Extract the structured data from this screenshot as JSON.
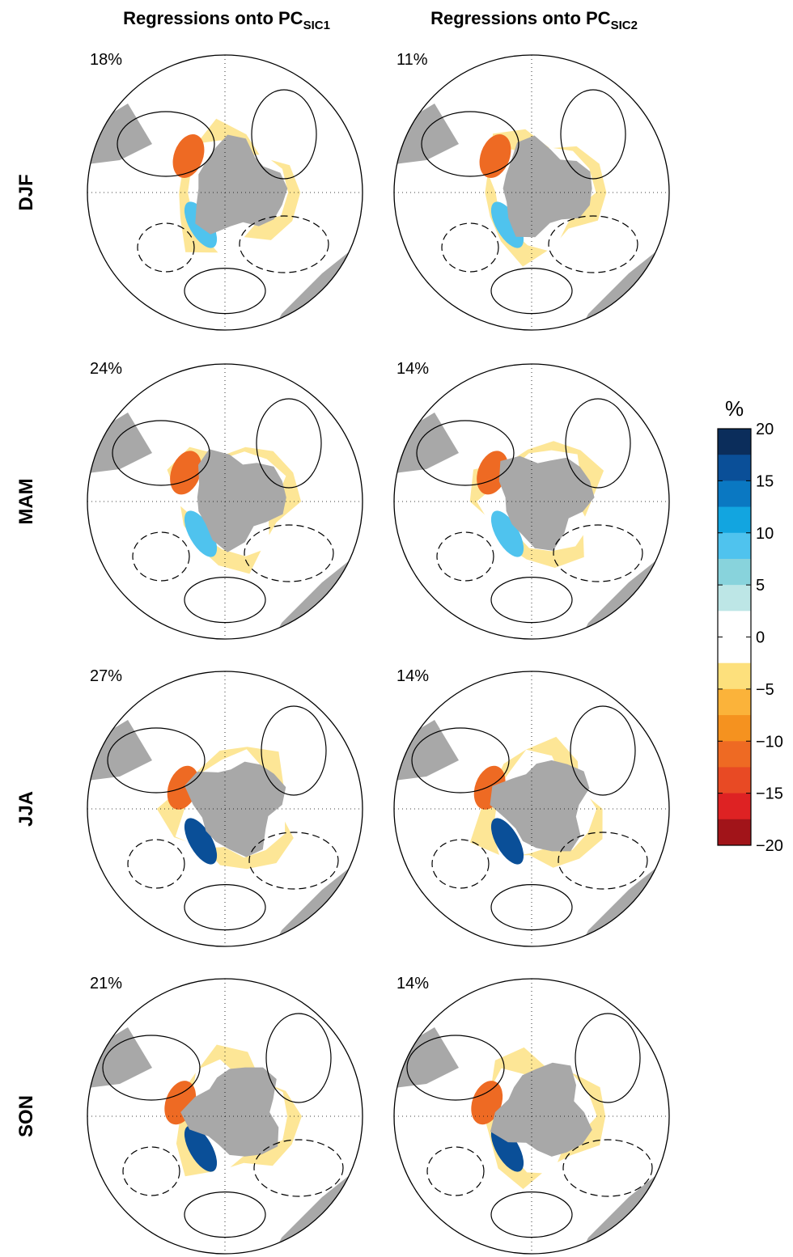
{
  "column_titles": [
    {
      "text": "Regressions onto PC",
      "subscript": "SIC1"
    },
    {
      "text": "Regressions onto PC",
      "subscript": "SIC2"
    }
  ],
  "rows": [
    {
      "label": "DJF",
      "panels": [
        "18%",
        "11%"
      ]
    },
    {
      "label": "MAM",
      "panels": [
        "24%",
        "14%"
      ]
    },
    {
      "label": "JJA",
      "panels": [
        "27%",
        "14%"
      ]
    },
    {
      "label": "SON",
      "panels": [
        "21%",
        "14%"
      ]
    }
  ],
  "colorbar": {
    "unit": "%",
    "lim": [
      20,
      -20
    ],
    "ticks": [
      20,
      15,
      10,
      5,
      0,
      {
        "value": -5,
        "label": "−5"
      },
      {
        "value": -10,
        "label": "−10"
      },
      {
        "value": -15,
        "label": "−15"
      },
      {
        "value": -20,
        "label": "−20"
      }
    ],
    "colors": [
      "#0b2d5b",
      "#0a4f98",
      "#0a78c2",
      "#12a5e0",
      "#4fc3ee",
      "#88d3dc",
      "#bde6e6",
      "#ffffff",
      "#ffffff",
      "#fde07c",
      "#fbb33a",
      "#f5921f",
      "#ee6a23",
      "#e84a24",
      "#de2223",
      "#a11419"
    ]
  }
}
